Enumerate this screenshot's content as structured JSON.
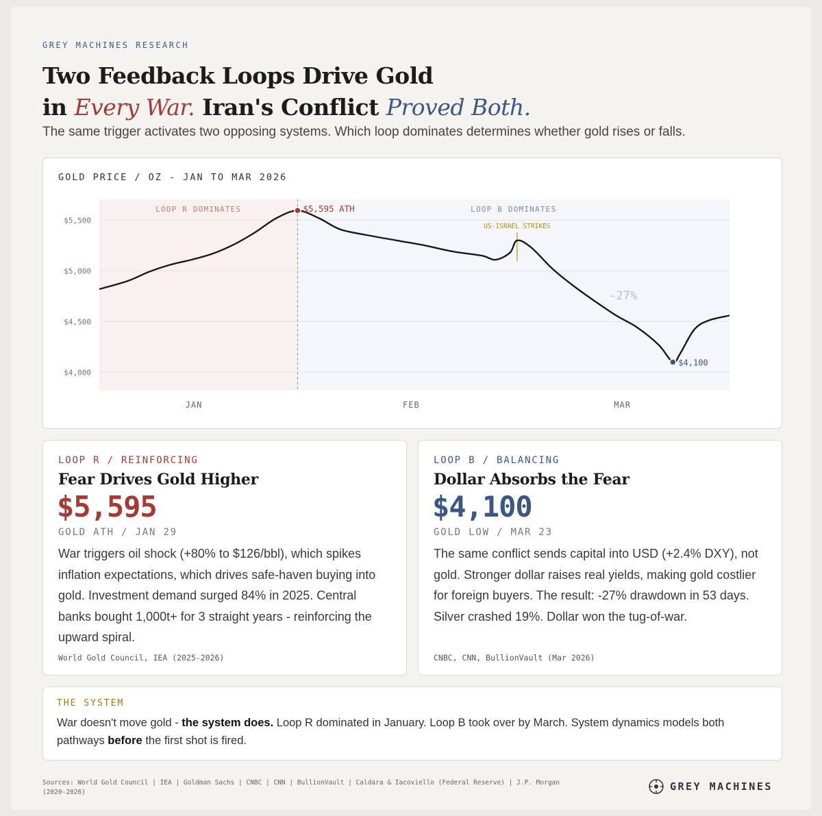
{
  "header": {
    "eyebrow": "GREY MACHINES RESEARCH",
    "title_line1": "Two Feedback Loops Drive Gold",
    "title_in": "in",
    "title_every_war": "Every War.",
    "title_mid": "Iran's Conflict",
    "title_proved_both": "Proved Both.",
    "subtitle": "The same trigger activates two opposing systems. Which loop dominates determines whether gold rises or falls."
  },
  "chart_data": {
    "type": "line",
    "title": "GOLD PRICE / OZ - JAN TO MAR 2026",
    "x_axis_labels": [
      "JAN",
      "FEB",
      "MAR"
    ],
    "y_ticks": [
      {
        "value": 5500,
        "label": "$5,500"
      },
      {
        "value": 5000,
        "label": "$5,000"
      },
      {
        "value": 4500,
        "label": "$4,500"
      },
      {
        "value": 4000,
        "label": "$4,000"
      }
    ],
    "ylim": [
      3820,
      5705
    ],
    "xlim": [
      "2026-01-01",
      "2026-03-31"
    ],
    "series": [
      {
        "color": "#1a1a1a",
        "points": [
          {
            "x": "2026-01-01",
            "y": 4820
          },
          {
            "x": "2026-01-05",
            "y": 4900
          },
          {
            "x": "2026-01-08",
            "y": 4990
          },
          {
            "x": "2026-01-11",
            "y": 5060
          },
          {
            "x": "2026-01-14",
            "y": 5110
          },
          {
            "x": "2026-01-17",
            "y": 5170
          },
          {
            "x": "2026-01-20",
            "y": 5260
          },
          {
            "x": "2026-01-23",
            "y": 5380
          },
          {
            "x": "2026-01-26",
            "y": 5520
          },
          {
            "x": "2026-01-29",
            "y": 5595
          },
          {
            "x": "2026-02-01",
            "y": 5520
          },
          {
            "x": "2026-02-04",
            "y": 5410
          },
          {
            "x": "2026-02-08",
            "y": 5350
          },
          {
            "x": "2026-02-12",
            "y": 5300
          },
          {
            "x": "2026-02-16",
            "y": 5250
          },
          {
            "x": "2026-02-20",
            "y": 5190
          },
          {
            "x": "2026-02-24",
            "y": 5150
          },
          {
            "x": "2026-02-26",
            "y": 5110
          },
          {
            "x": "2026-02-28",
            "y": 5180
          },
          {
            "x": "2026-03-01",
            "y": 5300
          },
          {
            "x": "2026-03-03",
            "y": 5230
          },
          {
            "x": "2026-03-06",
            "y": 5020
          },
          {
            "x": "2026-03-09",
            "y": 4850
          },
          {
            "x": "2026-03-12",
            "y": 4700
          },
          {
            "x": "2026-03-15",
            "y": 4560
          },
          {
            "x": "2026-03-18",
            "y": 4440
          },
          {
            "x": "2026-03-21",
            "y": 4270
          },
          {
            "x": "2026-03-23",
            "y": 4100
          },
          {
            "x": "2026-03-24",
            "y": 4180
          },
          {
            "x": "2026-03-26",
            "y": 4420
          },
          {
            "x": "2026-03-28",
            "y": 4510
          },
          {
            "x": "2026-03-31",
            "y": 4560
          }
        ]
      }
    ],
    "regions": [
      {
        "label": "LOOP R DOMINATES",
        "x0": "2026-01-01",
        "x1": "2026-01-29",
        "color": "#f9f1f0",
        "label_color": "#c07a73"
      },
      {
        "label": "LOOP B DOMINATES",
        "x0": "2026-01-29",
        "x1": "2026-03-31",
        "color": "#f5f6f9",
        "label_color": "#7b8aa8"
      }
    ],
    "annotations": [
      {
        "text": "$5,595 ATH",
        "x": "2026-01-29",
        "y": 5595,
        "color": "#a53a35"
      },
      {
        "text": "US-ISRAEL STRIKES",
        "x": "2026-03-01",
        "y": 5300,
        "color": "#b08a25"
      },
      {
        "text": "$4,100",
        "x": "2026-03-23",
        "y": 4100,
        "color": "#3b5788"
      },
      {
        "text": "-27%",
        "x": "2026-03-14",
        "y": 4720,
        "color": "#b8bfcc"
      }
    ],
    "grid": true
  },
  "loop_r": {
    "eyebrow": "LOOP R / REINFORCING",
    "title": "Fear Drives Gold Higher",
    "value": "$5,595",
    "caption": "GOLD ATH / JAN 29",
    "body": "War triggers oil shock (+80% to $126/bbl), which spikes inflation expectations, which drives safe-haven buying into gold. Investment demand surged 84% in 2025. Central banks bought 1,000t+ for 3 straight years - reinforcing the upward spiral.",
    "source": "World Gold Council, IEA (2025-2026)",
    "color": "#a53a35"
  },
  "loop_b": {
    "eyebrow": "LOOP B / BALANCING",
    "title": "Dollar Absorbs the Fear",
    "value": "$4,100",
    "caption": "GOLD LOW / MAR 23",
    "body": "The same conflict sends capital into USD (+2.4% DXY), not gold. Stronger dollar raises real yields, making gold costlier for foreign buyers. The result: -27% drawdown in 53 days. Silver crashed 19%. Dollar won the tug-of-war.",
    "source": "CNBC, CNN, BullionVault (Mar 2026)",
    "color": "#3b5788"
  },
  "system": {
    "eyebrow": "THE SYSTEM",
    "text_1": "War doesn't move gold - ",
    "text_bold_1": "the system does.",
    "text_2": " Loop R dominated in January. Loop B took over by March. System dynamics models both pathways ",
    "text_bold_2": "before",
    "text_3": " the first shot is fired."
  },
  "footer": {
    "sources": "Sources: World Gold Council | IEA | Goldman Sachs | CNBC | CNN | BullionVault | Caldara & Iacoviello (Federal Reserve) | J.P. Morgan (2020-2026)",
    "brand": "GREY MACHINES",
    "logo_icon": "grey-machines-logo-icon"
  }
}
